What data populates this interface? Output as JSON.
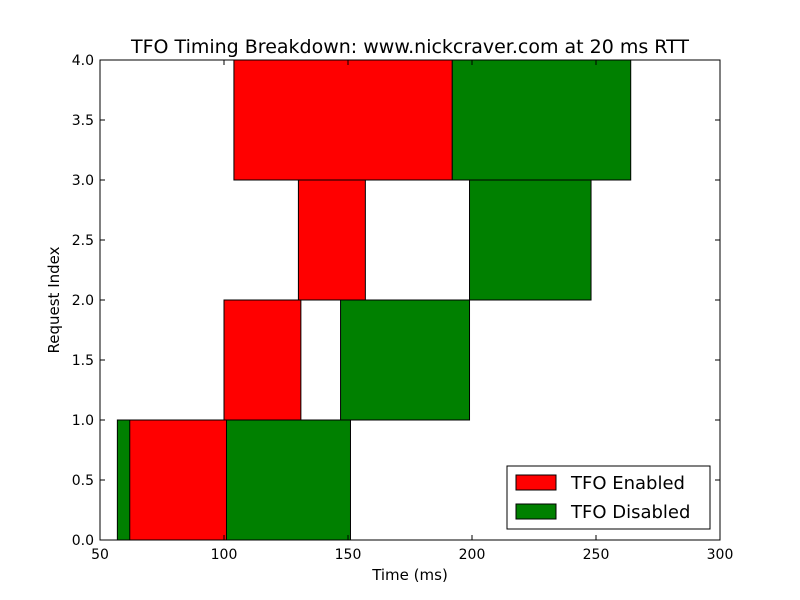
{
  "chart_data": {
    "type": "bar",
    "orientation": "horizontal-intervals",
    "title": "TFO Timing Breakdown: www.nickcraver.com at 20 ms RTT",
    "xlabel": "Time (ms)",
    "ylabel": "Request Index",
    "xlim": [
      50,
      300
    ],
    "ylim": [
      0,
      4
    ],
    "xticks": [
      "50",
      "100",
      "150",
      "200",
      "250",
      "300"
    ],
    "yticks": [
      "0.0",
      "0.5",
      "1.0",
      "1.5",
      "2.0",
      "2.5",
      "3.0",
      "3.5",
      "4.0"
    ],
    "grid": false,
    "legend_position": "bottom-right",
    "series": [
      {
        "name": "TFO Enabled",
        "color": "#ff0000",
        "intervals": [
          {
            "request": 0,
            "start": 62,
            "end": 101
          },
          {
            "request": 1,
            "start": 100,
            "end": 131
          },
          {
            "request": 2,
            "start": 130,
            "end": 157
          },
          {
            "request": 3,
            "start": 104,
            "end": 192
          }
        ]
      },
      {
        "name": "TFO Disabled",
        "color": "#008000",
        "intervals": [
          {
            "request": 0,
            "start": 57,
            "end": 151
          },
          {
            "request": 1,
            "start": 147,
            "end": 199
          },
          {
            "request": 2,
            "start": 199,
            "end": 248
          },
          {
            "request": 3,
            "start": 192,
            "end": 264
          }
        ]
      }
    ]
  }
}
